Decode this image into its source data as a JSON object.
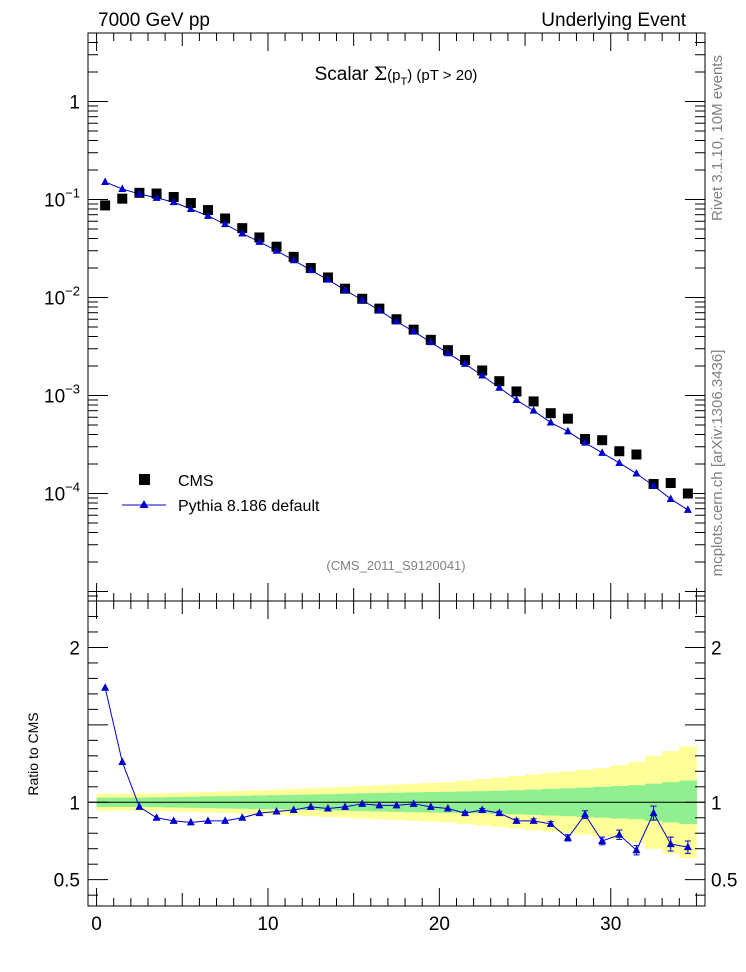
{
  "header": {
    "left": "7000 GeV pp",
    "right": "Underlying Event"
  },
  "side": {
    "rivet": "Rivet 3.1.10, 10M events",
    "source": "mcplots.cern.ch [arXiv:1306.3436]"
  },
  "chart_data": [
    {
      "type": "scatter",
      "panel": "main",
      "title": "Scalar Σ(pT) (pT > 20)",
      "title_parts": {
        "prefix": "Scalar ",
        "sigma": "Σ",
        "open": "(p",
        "sub": "T",
        "close": ")",
        "suffix": " (pT > 20)"
      },
      "watermark": "(CMS_2011_S9120041)",
      "yscale": "log",
      "ylim": [
        8e-06,
        5
      ],
      "xlim": [
        -0.5,
        35.5
      ],
      "yticks": [
        {
          "value": 1,
          "label": "1"
        },
        {
          "value": 0.1,
          "base": "10",
          "exp": "−1"
        },
        {
          "value": 0.01,
          "base": "10",
          "exp": "−2"
        },
        {
          "value": 0.001,
          "base": "10",
          "exp": "−3"
        },
        {
          "value": 0.0001,
          "base": "10",
          "exp": "−4"
        }
      ],
      "legend": [
        {
          "name": "CMS",
          "marker": "square",
          "color": "#000000"
        },
        {
          "name": "Pythia 8.186 default",
          "marker": "triangle",
          "color": "#0000cc"
        }
      ],
      "x": [
        0.5,
        1.5,
        2.5,
        3.5,
        4.5,
        5.5,
        6.5,
        7.5,
        8.5,
        9.5,
        10.5,
        11.5,
        12.5,
        13.5,
        14.5,
        15.5,
        16.5,
        17.5,
        18.5,
        19.5,
        20.5,
        21.5,
        22.5,
        23.5,
        24.5,
        25.5,
        26.5,
        27.5,
        28.5,
        29.5,
        30.5,
        31.5,
        32.5,
        33.5,
        34.5
      ],
      "series": [
        {
          "name": "CMS",
          "values": [
            0.087,
            0.102,
            0.117,
            0.115,
            0.106,
            0.092,
            0.078,
            0.064,
            0.051,
            0.041,
            0.033,
            0.026,
            0.02,
            0.016,
            0.0123,
            0.0097,
            0.0077,
            0.006,
            0.0047,
            0.0037,
            0.0029,
            0.0023,
            0.0018,
            0.0014,
            0.0011,
            0.00087,
            0.00066,
            0.00058,
            0.00036,
            0.00035,
            0.00027,
            0.00025,
            0.000125,
            0.000128,
            0.0001
          ]
        },
        {
          "name": "Pythia 8.186 default",
          "values": [
            0.151,
            0.128,
            0.114,
            0.104,
            0.094,
            0.08,
            0.068,
            0.056,
            0.045,
            0.037,
            0.03,
            0.024,
            0.019,
            0.0152,
            0.0119,
            0.0094,
            0.0074,
            0.0057,
            0.0045,
            0.0035,
            0.0027,
            0.0021,
            0.0016,
            0.0012,
            0.0009,
            0.0007,
            0.00053,
            0.00043,
            0.00033,
            0.00026,
            0.000205,
            0.00016,
            0.00012,
            8.8e-05,
            6.8e-05
          ]
        }
      ]
    },
    {
      "type": "line",
      "panel": "ratio",
      "ylabel": "Ratio to CMS",
      "ylim": [
        0.33,
        2.3
      ],
      "xlim": [
        -0.5,
        35.5
      ],
      "yticks": [
        {
          "value": 2,
          "label": "2"
        },
        {
          "value": 1,
          "label": "1"
        },
        {
          "value": 0.5,
          "label": "0.5"
        }
      ],
      "xticks": [
        {
          "value": 0,
          "label": "0"
        },
        {
          "value": 10,
          "label": "10"
        },
        {
          "value": 20,
          "label": "20"
        },
        {
          "value": 30,
          "label": "30"
        }
      ],
      "x": [
        0.5,
        1.5,
        2.5,
        3.5,
        4.5,
        5.5,
        6.5,
        7.5,
        8.5,
        9.5,
        10.5,
        11.5,
        12.5,
        13.5,
        14.5,
        15.5,
        16.5,
        17.5,
        18.5,
        19.5,
        20.5,
        21.5,
        22.5,
        23.5,
        24.5,
        25.5,
        26.5,
        27.5,
        28.5,
        29.5,
        30.5,
        31.5,
        32.5,
        33.5,
        34.5
      ],
      "series": [
        {
          "name": "Pythia 8.186 default / CMS",
          "values": [
            1.74,
            1.26,
            0.97,
            0.9,
            0.88,
            0.87,
            0.88,
            0.88,
            0.9,
            0.93,
            0.94,
            0.95,
            0.97,
            0.96,
            0.97,
            0.99,
            0.98,
            0.98,
            0.99,
            0.97,
            0.96,
            0.93,
            0.95,
            0.93,
            0.88,
            0.88,
            0.86,
            0.77,
            0.92,
            0.75,
            0.79,
            0.69,
            0.93,
            0.73,
            0.71
          ],
          "errors": [
            0.003,
            0.003,
            0.003,
            0.003,
            0.003,
            0.003,
            0.003,
            0.003,
            0.003,
            0.003,
            0.003,
            0.004,
            0.004,
            0.004,
            0.004,
            0.005,
            0.005,
            0.006,
            0.006,
            0.007,
            0.008,
            0.009,
            0.01,
            0.011,
            0.012,
            0.013,
            0.015,
            0.02,
            0.025,
            0.025,
            0.03,
            0.03,
            0.045,
            0.045,
            0.04
          ]
        }
      ],
      "band_inner": [
        0.03,
        0.03,
        0.03,
        0.032,
        0.034,
        0.036,
        0.038,
        0.04,
        0.042,
        0.044,
        0.046,
        0.048,
        0.05,
        0.052,
        0.055,
        0.058,
        0.06,
        0.062,
        0.064,
        0.066,
        0.068,
        0.07,
        0.072,
        0.075,
        0.078,
        0.082,
        0.086,
        0.09,
        0.095,
        0.1,
        0.105,
        0.11,
        0.12,
        0.13,
        0.14
      ],
      "band_outer": [
        0.055,
        0.055,
        0.056,
        0.058,
        0.06,
        0.063,
        0.066,
        0.07,
        0.074,
        0.078,
        0.082,
        0.086,
        0.09,
        0.095,
        0.1,
        0.105,
        0.11,
        0.115,
        0.12,
        0.125,
        0.13,
        0.14,
        0.15,
        0.16,
        0.17,
        0.18,
        0.19,
        0.2,
        0.21,
        0.22,
        0.24,
        0.26,
        0.3,
        0.33,
        0.36
      ],
      "band_colors": {
        "inner": "#90f090",
        "outer": "#ffff99"
      }
    }
  ]
}
